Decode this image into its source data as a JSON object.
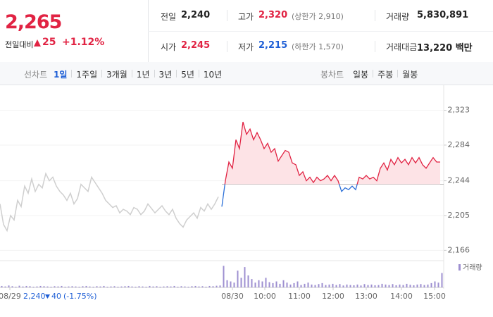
{
  "header": {
    "price": "2,265",
    "change_label": "전일대비",
    "change": "25",
    "change_rate": "+1.12%",
    "stats": [
      {
        "label": "전일",
        "value": "2,240",
        "color": "#222222"
      },
      {
        "label": "고가",
        "value": "2,320",
        "note": "(상한가 2,910)",
        "color": "#e12343"
      },
      {
        "label": "거래량",
        "value": "5,830,891",
        "color": "#222222"
      },
      {
        "label": "시가",
        "value": "2,245",
        "color": "#e12343"
      },
      {
        "label": "저가",
        "value": "2,215",
        "note": "(하한가 1,570)",
        "color": "#1f5fd6"
      },
      {
        "label": "거래대금",
        "value": "13,220 백만",
        "color": "#222222"
      }
    ]
  },
  "tabs": {
    "line_label": "선차트",
    "line_periods": [
      "1일",
      "1주일",
      "3개월",
      "1년",
      "3년",
      "5년",
      "10년"
    ],
    "active_index": 0,
    "candle_label": "봉차트",
    "candle_periods": [
      "일봉",
      "주봉",
      "월봉"
    ]
  },
  "chart_data": {
    "type": "line",
    "ylim": [
      2156,
      2344
    ],
    "yticks": [
      {
        "value": 2323,
        "label": "2,323"
      },
      {
        "value": 2284,
        "label": "2,284"
      },
      {
        "value": 2244,
        "label": "2,244"
      },
      {
        "value": 2205,
        "label": "2,205"
      },
      {
        "value": 2166,
        "label": "2,166"
      }
    ],
    "xticks": [
      "08/29",
      "08/30",
      "10:00",
      "11:00",
      "12:00",
      "13:00",
      "14:00",
      "15:00"
    ],
    "reference": 2240,
    "series": [
      {
        "color": "#cfcfcf",
        "values": [
          2218,
          2195,
          2188,
          2205,
          2200,
          2222,
          2215,
          2238,
          2230,
          2246,
          2232,
          2240,
          2236,
          2252,
          2244,
          2248,
          2238,
          2232,
          2228,
          2222,
          2230,
          2218,
          2224,
          2240,
          2236,
          2232,
          2248,
          2242,
          2236,
          2230,
          2222,
          2218,
          2214,
          2216,
          2208,
          2212,
          2210,
          2206,
          2214,
          2212,
          2206,
          2210,
          2218,
          2213,
          2208,
          2212,
          2216,
          2210,
          2206,
          2212,
          2202,
          2196,
          2192,
          2200,
          2204,
          2208,
          2202,
          2214,
          2210,
          2218,
          2212,
          2218,
          2226
        ]
      },
      {
        "color": "#e12343",
        "color_below": "#2a6fd8",
        "fill": "#fde3e6",
        "values": [
          2215,
          2244,
          2265,
          2258,
          2290,
          2280,
          2310,
          2296,
          2302,
          2290,
          2298,
          2290,
          2280,
          2286,
          2276,
          2280,
          2266,
          2272,
          2278,
          2276,
          2264,
          2262,
          2250,
          2254,
          2244,
          2248,
          2242,
          2248,
          2244,
          2246,
          2250,
          2244,
          2250,
          2244,
          2232,
          2236,
          2234,
          2238,
          2234,
          2248,
          2246,
          2250,
          2246,
          2248,
          2244,
          2258,
          2264,
          2256,
          2268,
          2262,
          2270,
          2264,
          2268,
          2262,
          2270,
          2264,
          2270,
          2262,
          2258,
          2264,
          2270,
          2265,
          2265
        ]
      }
    ],
    "volume": {
      "name": "거래량",
      "color": "#9d8fd0",
      "ylim": [
        0,
        100
      ],
      "series": [
        [
          6,
          4,
          8,
          5,
          3,
          7,
          4,
          6,
          5,
          3,
          4,
          6,
          5,
          4,
          3,
          5,
          4,
          6,
          3,
          4,
          5,
          4,
          3,
          5,
          6,
          4,
          3,
          5,
          4,
          6,
          3,
          4,
          5,
          3,
          4,
          5,
          6,
          4,
          3,
          5,
          4,
          3,
          6,
          4,
          5,
          3,
          4,
          5,
          4,
          6,
          3,
          5,
          4,
          3,
          5,
          6,
          4,
          5,
          3,
          6,
          5,
          7,
          8
        ],
        [
          90,
          30,
          25,
          20,
          70,
          40,
          85,
          50,
          35,
          20,
          30,
          25,
          40,
          22,
          18,
          25,
          15,
          30,
          20,
          12,
          18,
          25,
          10,
          15,
          20,
          12,
          10,
          14,
          18,
          10,
          12,
          15,
          10,
          14,
          8,
          12,
          10,
          9,
          12,
          8,
          14,
          10,
          12,
          9,
          10,
          15,
          12,
          10,
          14,
          9,
          12,
          10,
          15,
          11,
          9,
          12,
          14,
          10,
          12,
          18,
          25,
          20,
          60
        ]
      ]
    },
    "previous_close": {
      "price": "2,240",
      "change": "40",
      "change_rate": "(-1.75%)"
    }
  }
}
